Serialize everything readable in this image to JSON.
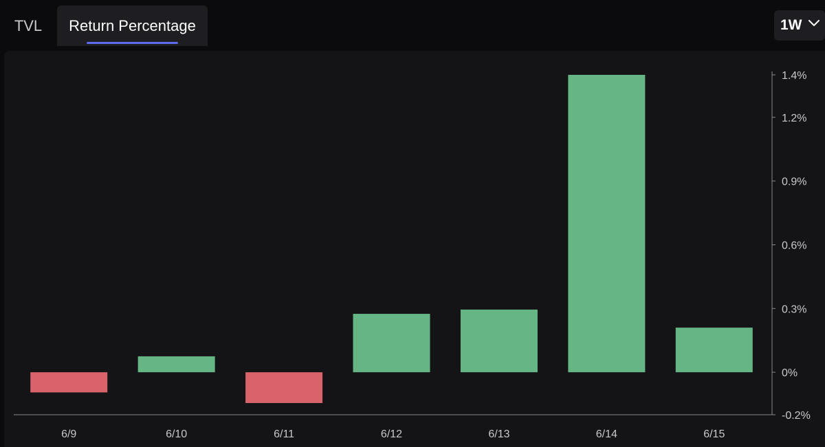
{
  "tabs": [
    {
      "label": "TVL",
      "active": false
    },
    {
      "label": "Return Percentage",
      "active": true
    }
  ],
  "period": {
    "selected": "1W",
    "icon": "chevron-down-icon"
  },
  "colors": {
    "positive": "#66b584",
    "negative": "#d9636a",
    "accent": "#5b6cf0",
    "axis": "#8a8a8f"
  },
  "chart_data": {
    "type": "bar",
    "categories": [
      "6/9",
      "6/10",
      "6/11",
      "6/12",
      "6/13",
      "6/14",
      "6/15"
    ],
    "values": [
      -0.095,
      0.075,
      -0.145,
      0.275,
      0.295,
      1.4,
      0.21
    ],
    "yticks": [
      {
        "value": 1.4,
        "label": "1.4%"
      },
      {
        "value": 1.2,
        "label": "1.2%"
      },
      {
        "value": 0.9,
        "label": "0.9%"
      },
      {
        "value": 0.6,
        "label": "0.6%"
      },
      {
        "value": 0.3,
        "label": "0.3%"
      },
      {
        "value": 0,
        "label": "0%"
      },
      {
        "value": -0.2,
        "label": "-0.2%"
      }
    ],
    "ylim": [
      -0.2,
      1.4
    ],
    "y_axis_position": "right",
    "grid": false
  }
}
